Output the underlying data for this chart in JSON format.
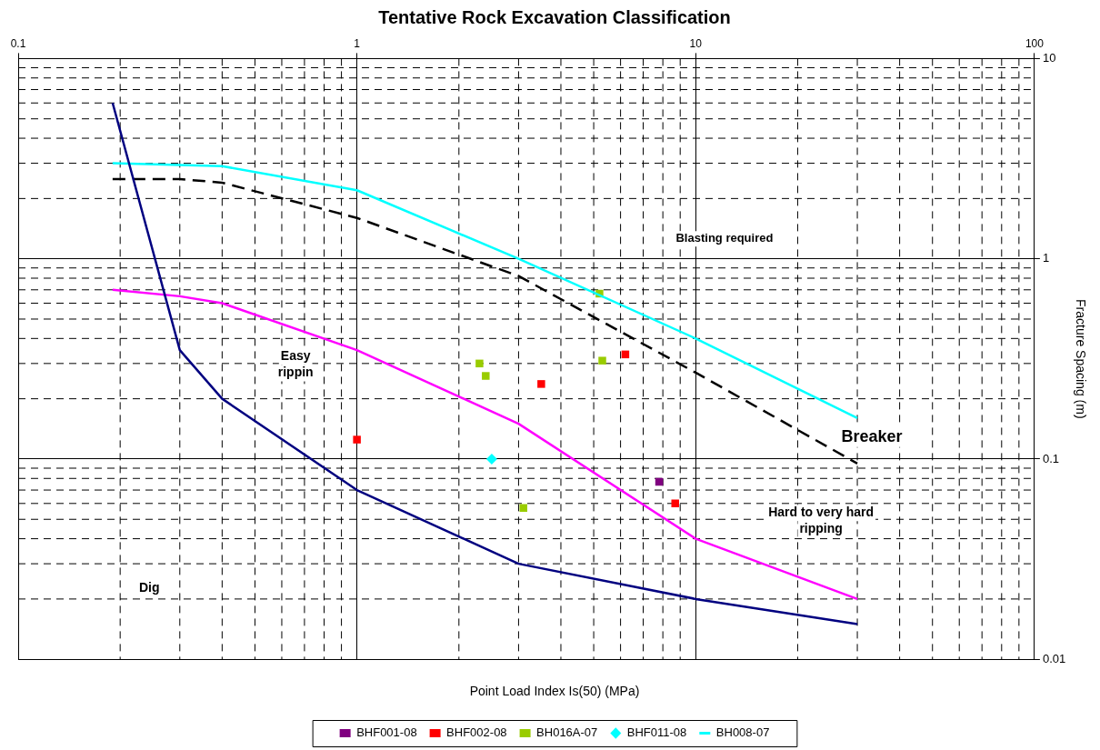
{
  "chart_data": {
    "type": "scatter",
    "title": "Tentative Rock Excavation Classification",
    "xlabel": "Point Load Index Is(50) (MPa)",
    "ylabel": "Fracture Spacing (m)",
    "log": "xy",
    "grid": true,
    "legend": "bottom",
    "marker": "square",
    "xlim": [
      0.1,
      100
    ],
    "xticks": [
      0.1,
      1,
      10,
      100
    ],
    "ylim": [
      0.01,
      10
    ],
    "yticks": [
      0.01,
      0.1,
      1,
      10
    ],
    "series": [
      {
        "type": "line",
        "color": "#000080",
        "marker": "none",
        "x": [
          0.19,
          0.3,
          0.4,
          1,
          3,
          10,
          30
        ],
        "values": [
          6.0,
          0.35,
          0.2,
          0.07,
          0.03,
          0.02,
          0.015
        ]
      },
      {
        "type": "line",
        "color": "#ff00ff",
        "marker": "none",
        "x": [
          0.19,
          0.3,
          0.4,
          1,
          3,
          10,
          30
        ],
        "values": [
          0.7,
          0.65,
          0.6,
          0.35,
          0.15,
          0.04,
          0.02
        ]
      },
      {
        "type": "line",
        "color": "#00ffff",
        "marker": "none",
        "x": [
          0.19,
          0.4,
          1,
          3,
          10,
          30
        ],
        "values": [
          3.0,
          2.9,
          2.2,
          1.0,
          0.4,
          0.16
        ]
      },
      {
        "type": "line",
        "color": "#000000",
        "marker": "none",
        "line_style": "dashed",
        "x": [
          0.19,
          0.3,
          0.4,
          1,
          3,
          10,
          30
        ],
        "values": [
          2.5,
          2.5,
          2.4,
          1.6,
          0.82,
          0.27,
          0.095
        ]
      },
      {
        "name": "BHF001-08",
        "color": "#800080",
        "x": [
          7.8
        ],
        "values": [
          0.077
        ]
      },
      {
        "name": "BHF002-08",
        "color": "#ff0000",
        "x": [
          1,
          3.5,
          6.2,
          8.7
        ],
        "values": [
          0.125,
          0.237,
          0.333,
          0.06
        ]
      },
      {
        "name": "BH016A-07",
        "color": "#99cc00",
        "x": [
          5.2,
          2.3,
          2.4,
          5.3,
          3.1
        ],
        "values": [
          0.67,
          0.3,
          0.26,
          0.31,
          0.057
        ]
      },
      {
        "name": "BHF011-08",
        "color": "#00ffff",
        "marker": "diamond",
        "x": [
          2.5
        ],
        "values": [
          0.1
        ]
      },
      {
        "name": "BH008-07",
        "color": "#00ffff",
        "marker": "none"
      }
    ],
    "annotations": [
      "Blasting required",
      "Easy\nrippin",
      "Dig",
      "Hard to very hard\nripping",
      "Breaker"
    ]
  }
}
